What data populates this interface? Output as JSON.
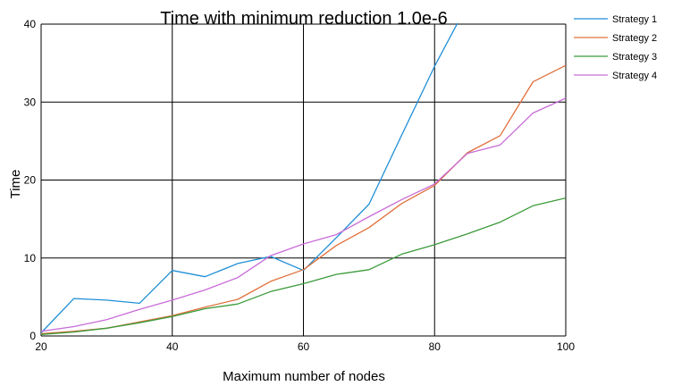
{
  "chart_data": {
    "type": "line",
    "title": "Time with minimum reduction 1.0e-6",
    "xlabel": "Maximum number of nodes",
    "ylabel": "Time",
    "xlim": [
      20,
      100
    ],
    "ylim": [
      0,
      40
    ],
    "xticks": [
      20,
      40,
      60,
      80,
      100
    ],
    "yticks": [
      0,
      10,
      20,
      30,
      40
    ],
    "grid": true,
    "legend_position": "right",
    "x": [
      20,
      25,
      30,
      35,
      40,
      45,
      50,
      55,
      60,
      65,
      70,
      75,
      80,
      85,
      90,
      95,
      100
    ],
    "series": [
      {
        "name": "Strategy 1",
        "color": "#1f8fd6",
        "values": [
          0.4,
          4.8,
          4.6,
          4.2,
          8.4,
          7.6,
          9.3,
          10.2,
          8.4,
          12.6,
          16.9,
          25.8,
          34.6,
          42.5,
          null,
          null,
          null
        ]
      },
      {
        "name": "Strategy 2",
        "color": "#e0703c",
        "values": [
          0.3,
          0.6,
          1.0,
          1.8,
          2.6,
          3.7,
          4.7,
          7.0,
          8.5,
          11.6,
          13.9,
          17.0,
          19.3,
          23.5,
          25.7,
          32.6,
          34.7
        ]
      },
      {
        "name": "Strategy 3",
        "color": "#3a9a3a",
        "values": [
          0.2,
          0.5,
          1.0,
          1.7,
          2.5,
          3.5,
          4.1,
          5.7,
          6.7,
          7.9,
          8.5,
          10.5,
          11.7,
          13.1,
          14.6,
          16.7,
          17.7
        ]
      },
      {
        "name": "Strategy 4",
        "color": "#c86cd8",
        "values": [
          0.6,
          1.2,
          2.1,
          3.4,
          4.6,
          5.9,
          7.5,
          10.3,
          11.8,
          13.0,
          15.3,
          17.5,
          19.5,
          23.4,
          24.5,
          28.6,
          30.5
        ]
      }
    ]
  }
}
